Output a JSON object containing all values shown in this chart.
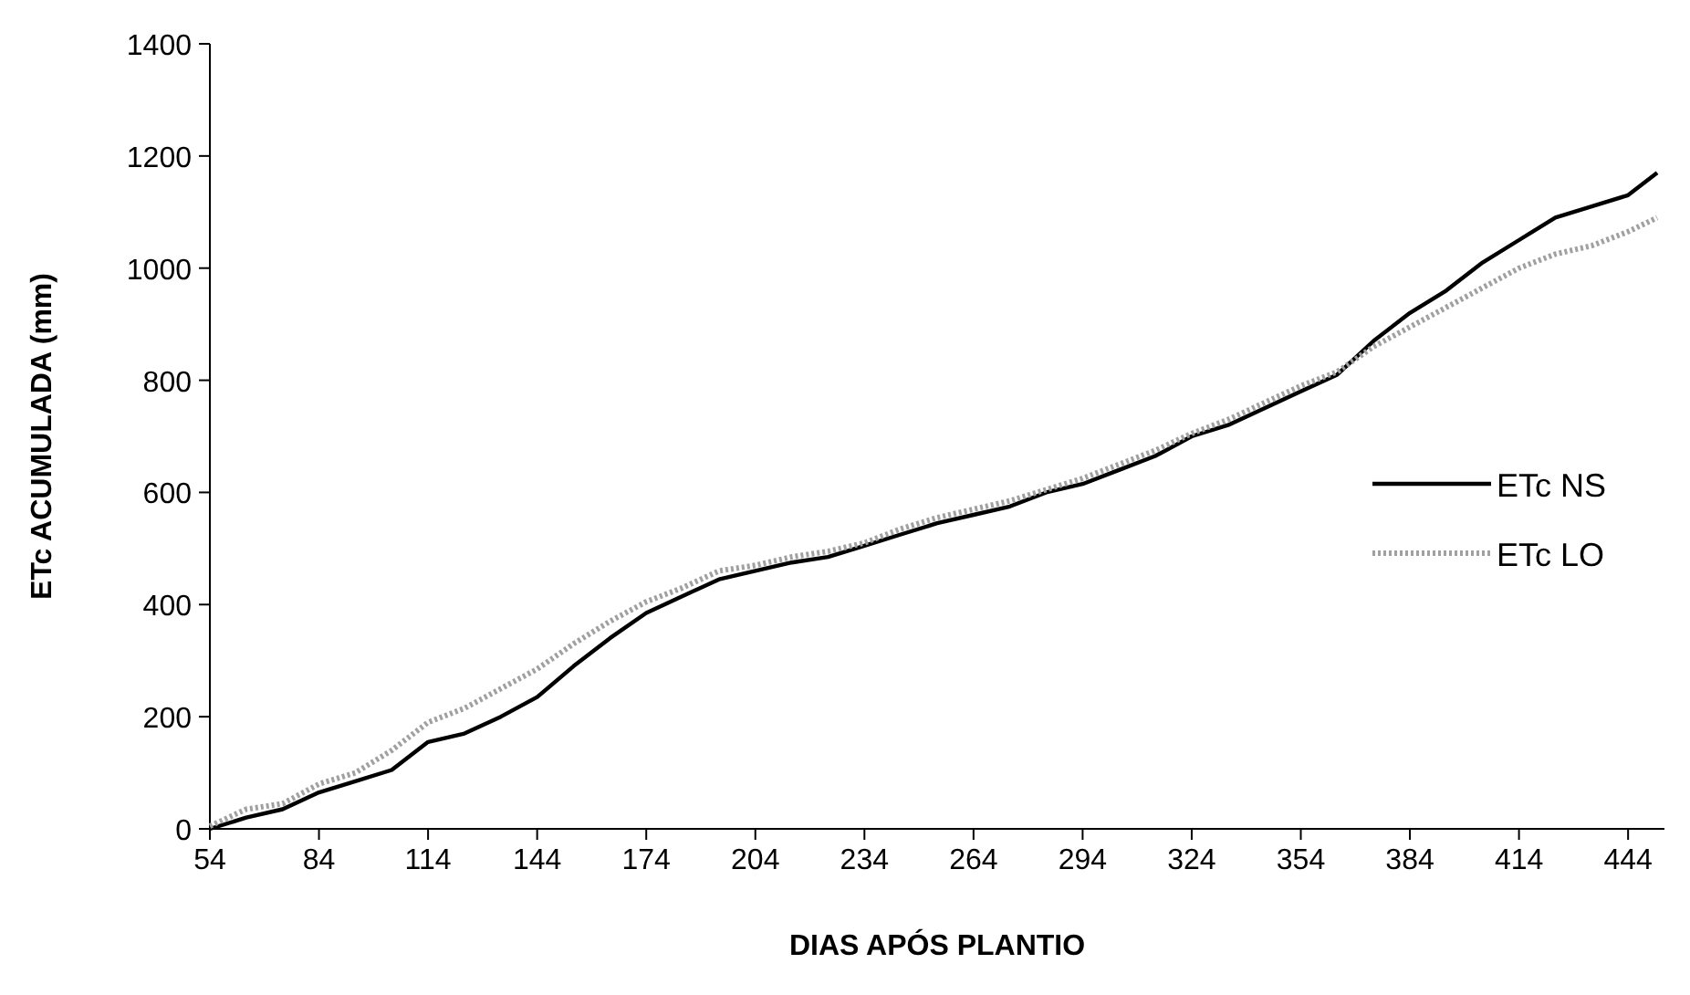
{
  "chart_data": {
    "type": "line",
    "xlabel": "DIAS APÓS PLANTIO",
    "ylabel": "ETc ACUMULADA (mm)",
    "x": [
      54,
      64,
      74,
      84,
      94,
      104,
      114,
      124,
      134,
      144,
      154,
      164,
      174,
      184,
      194,
      204,
      214,
      224,
      234,
      244,
      254,
      264,
      274,
      284,
      294,
      304,
      314,
      324,
      334,
      344,
      354,
      364,
      374,
      384,
      394,
      404,
      414,
      424,
      434,
      444,
      452
    ],
    "series": [
      {
        "name": "ETc NS",
        "color": "#000000",
        "line_style": "solid",
        "values": [
          0,
          20,
          35,
          65,
          85,
          105,
          155,
          170,
          200,
          235,
          290,
          340,
          385,
          415,
          445,
          460,
          475,
          485,
          505,
          525,
          545,
          560,
          575,
          600,
          615,
          640,
          665,
          700,
          720,
          750,
          780,
          810,
          870,
          920,
          960,
          1010,
          1050,
          1090,
          1110,
          1130,
          1170
        ]
      },
      {
        "name": "ETc LO",
        "color": "#a0a0a0",
        "line_style": "dotted",
        "values": [
          5,
          35,
          45,
          80,
          100,
          140,
          190,
          215,
          250,
          285,
          330,
          370,
          405,
          430,
          460,
          470,
          485,
          495,
          510,
          535,
          555,
          570,
          585,
          605,
          625,
          650,
          675,
          705,
          730,
          760,
          790,
          815,
          860,
          895,
          930,
          965,
          1000,
          1025,
          1040,
          1065,
          1090
        ]
      }
    ],
    "xlim": [
      54,
      454
    ],
    "xticks": [
      54,
      84,
      114,
      144,
      174,
      204,
      234,
      264,
      294,
      324,
      354,
      384,
      414,
      444
    ],
    "ylim": [
      0,
      1400
    ],
    "yticks": [
      0,
      200,
      400,
      600,
      800,
      1000,
      1200,
      1400
    ],
    "grid": false,
    "legend": "right",
    "marker": "none"
  }
}
